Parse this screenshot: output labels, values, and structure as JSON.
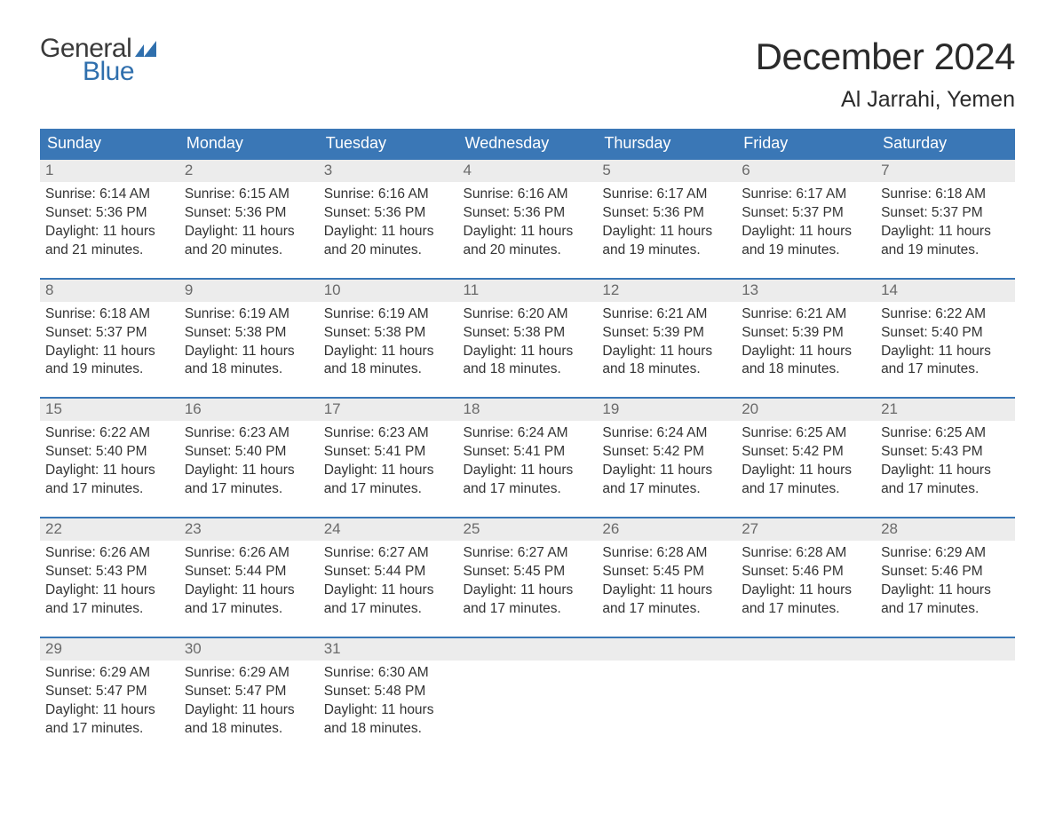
{
  "logo": {
    "text_general": "General",
    "text_blue": "Blue",
    "flag_color": "#2f6fad",
    "general_color": "#3a3a3a",
    "blue_color": "#2f6fad"
  },
  "header": {
    "month_title": "December 2024",
    "location": "Al Jarrahi, Yemen"
  },
  "colors": {
    "header_row_bg": "#3a77b6",
    "header_row_text": "#ffffff",
    "daynum_bg": "#ececec",
    "daynum_text": "#6a6a6a",
    "cell_border": "#3a77b6",
    "body_text": "#333333",
    "background": "#ffffff"
  },
  "day_headers": [
    "Sunday",
    "Monday",
    "Tuesday",
    "Wednesday",
    "Thursday",
    "Friday",
    "Saturday"
  ],
  "weeks": [
    [
      {
        "n": "1",
        "sr": "Sunrise: 6:14 AM",
        "ss": "Sunset: 5:36 PM",
        "d1": "Daylight: 11 hours",
        "d2": "and 21 minutes."
      },
      {
        "n": "2",
        "sr": "Sunrise: 6:15 AM",
        "ss": "Sunset: 5:36 PM",
        "d1": "Daylight: 11 hours",
        "d2": "and 20 minutes."
      },
      {
        "n": "3",
        "sr": "Sunrise: 6:16 AM",
        "ss": "Sunset: 5:36 PM",
        "d1": "Daylight: 11 hours",
        "d2": "and 20 minutes."
      },
      {
        "n": "4",
        "sr": "Sunrise: 6:16 AM",
        "ss": "Sunset: 5:36 PM",
        "d1": "Daylight: 11 hours",
        "d2": "and 20 minutes."
      },
      {
        "n": "5",
        "sr": "Sunrise: 6:17 AM",
        "ss": "Sunset: 5:36 PM",
        "d1": "Daylight: 11 hours",
        "d2": "and 19 minutes."
      },
      {
        "n": "6",
        "sr": "Sunrise: 6:17 AM",
        "ss": "Sunset: 5:37 PM",
        "d1": "Daylight: 11 hours",
        "d2": "and 19 minutes."
      },
      {
        "n": "7",
        "sr": "Sunrise: 6:18 AM",
        "ss": "Sunset: 5:37 PM",
        "d1": "Daylight: 11 hours",
        "d2": "and 19 minutes."
      }
    ],
    [
      {
        "n": "8",
        "sr": "Sunrise: 6:18 AM",
        "ss": "Sunset: 5:37 PM",
        "d1": "Daylight: 11 hours",
        "d2": "and 19 minutes."
      },
      {
        "n": "9",
        "sr": "Sunrise: 6:19 AM",
        "ss": "Sunset: 5:38 PM",
        "d1": "Daylight: 11 hours",
        "d2": "and 18 minutes."
      },
      {
        "n": "10",
        "sr": "Sunrise: 6:19 AM",
        "ss": "Sunset: 5:38 PM",
        "d1": "Daylight: 11 hours",
        "d2": "and 18 minutes."
      },
      {
        "n": "11",
        "sr": "Sunrise: 6:20 AM",
        "ss": "Sunset: 5:38 PM",
        "d1": "Daylight: 11 hours",
        "d2": "and 18 minutes."
      },
      {
        "n": "12",
        "sr": "Sunrise: 6:21 AM",
        "ss": "Sunset: 5:39 PM",
        "d1": "Daylight: 11 hours",
        "d2": "and 18 minutes."
      },
      {
        "n": "13",
        "sr": "Sunrise: 6:21 AM",
        "ss": "Sunset: 5:39 PM",
        "d1": "Daylight: 11 hours",
        "d2": "and 18 minutes."
      },
      {
        "n": "14",
        "sr": "Sunrise: 6:22 AM",
        "ss": "Sunset: 5:40 PM",
        "d1": "Daylight: 11 hours",
        "d2": "and 17 minutes."
      }
    ],
    [
      {
        "n": "15",
        "sr": "Sunrise: 6:22 AM",
        "ss": "Sunset: 5:40 PM",
        "d1": "Daylight: 11 hours",
        "d2": "and 17 minutes."
      },
      {
        "n": "16",
        "sr": "Sunrise: 6:23 AM",
        "ss": "Sunset: 5:40 PM",
        "d1": "Daylight: 11 hours",
        "d2": "and 17 minutes."
      },
      {
        "n": "17",
        "sr": "Sunrise: 6:23 AM",
        "ss": "Sunset: 5:41 PM",
        "d1": "Daylight: 11 hours",
        "d2": "and 17 minutes."
      },
      {
        "n": "18",
        "sr": "Sunrise: 6:24 AM",
        "ss": "Sunset: 5:41 PM",
        "d1": "Daylight: 11 hours",
        "d2": "and 17 minutes."
      },
      {
        "n": "19",
        "sr": "Sunrise: 6:24 AM",
        "ss": "Sunset: 5:42 PM",
        "d1": "Daylight: 11 hours",
        "d2": "and 17 minutes."
      },
      {
        "n": "20",
        "sr": "Sunrise: 6:25 AM",
        "ss": "Sunset: 5:42 PM",
        "d1": "Daylight: 11 hours",
        "d2": "and 17 minutes."
      },
      {
        "n": "21",
        "sr": "Sunrise: 6:25 AM",
        "ss": "Sunset: 5:43 PM",
        "d1": "Daylight: 11 hours",
        "d2": "and 17 minutes."
      }
    ],
    [
      {
        "n": "22",
        "sr": "Sunrise: 6:26 AM",
        "ss": "Sunset: 5:43 PM",
        "d1": "Daylight: 11 hours",
        "d2": "and 17 minutes."
      },
      {
        "n": "23",
        "sr": "Sunrise: 6:26 AM",
        "ss": "Sunset: 5:44 PM",
        "d1": "Daylight: 11 hours",
        "d2": "and 17 minutes."
      },
      {
        "n": "24",
        "sr": "Sunrise: 6:27 AM",
        "ss": "Sunset: 5:44 PM",
        "d1": "Daylight: 11 hours",
        "d2": "and 17 minutes."
      },
      {
        "n": "25",
        "sr": "Sunrise: 6:27 AM",
        "ss": "Sunset: 5:45 PM",
        "d1": "Daylight: 11 hours",
        "d2": "and 17 minutes."
      },
      {
        "n": "26",
        "sr": "Sunrise: 6:28 AM",
        "ss": "Sunset: 5:45 PM",
        "d1": "Daylight: 11 hours",
        "d2": "and 17 minutes."
      },
      {
        "n": "27",
        "sr": "Sunrise: 6:28 AM",
        "ss": "Sunset: 5:46 PM",
        "d1": "Daylight: 11 hours",
        "d2": "and 17 minutes."
      },
      {
        "n": "28",
        "sr": "Sunrise: 6:29 AM",
        "ss": "Sunset: 5:46 PM",
        "d1": "Daylight: 11 hours",
        "d2": "and 17 minutes."
      }
    ],
    [
      {
        "n": "29",
        "sr": "Sunrise: 6:29 AM",
        "ss": "Sunset: 5:47 PM",
        "d1": "Daylight: 11 hours",
        "d2": "and 17 minutes."
      },
      {
        "n": "30",
        "sr": "Sunrise: 6:29 AM",
        "ss": "Sunset: 5:47 PM",
        "d1": "Daylight: 11 hours",
        "d2": "and 18 minutes."
      },
      {
        "n": "31",
        "sr": "Sunrise: 6:30 AM",
        "ss": "Sunset: 5:48 PM",
        "d1": "Daylight: 11 hours",
        "d2": "and 18 minutes."
      },
      {
        "n": "",
        "sr": "",
        "ss": "",
        "d1": "",
        "d2": ""
      },
      {
        "n": "",
        "sr": "",
        "ss": "",
        "d1": "",
        "d2": ""
      },
      {
        "n": "",
        "sr": "",
        "ss": "",
        "d1": "",
        "d2": ""
      },
      {
        "n": "",
        "sr": "",
        "ss": "",
        "d1": "",
        "d2": ""
      }
    ]
  ]
}
